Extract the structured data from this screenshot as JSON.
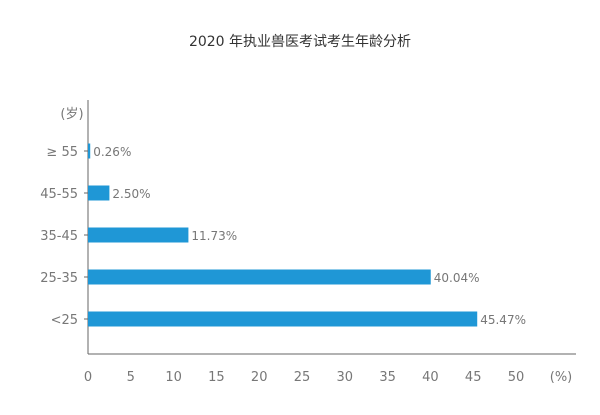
{
  "chart_data": {
    "type": "bar",
    "orientation": "horizontal",
    "title": "2020 年执业兽医考试考生年龄分析",
    "y_unit": "(岁)",
    "x_unit": "(%)",
    "categories": [
      "≥ 55",
      "45-55",
      "35-45",
      "25-35",
      "<25"
    ],
    "values": [
      0.26,
      2.5,
      11.73,
      40.04,
      45.47
    ],
    "value_labels": [
      "0.26%",
      "2.50%",
      "11.73%",
      "40.04%",
      "45.47%"
    ],
    "x_ticks": [
      "0",
      "5",
      "10",
      "15",
      "20",
      "25",
      "30",
      "35",
      "40",
      "45",
      "50"
    ],
    "xlim": [
      0,
      50
    ],
    "grid": false,
    "bar_color": "#1f97d6"
  }
}
